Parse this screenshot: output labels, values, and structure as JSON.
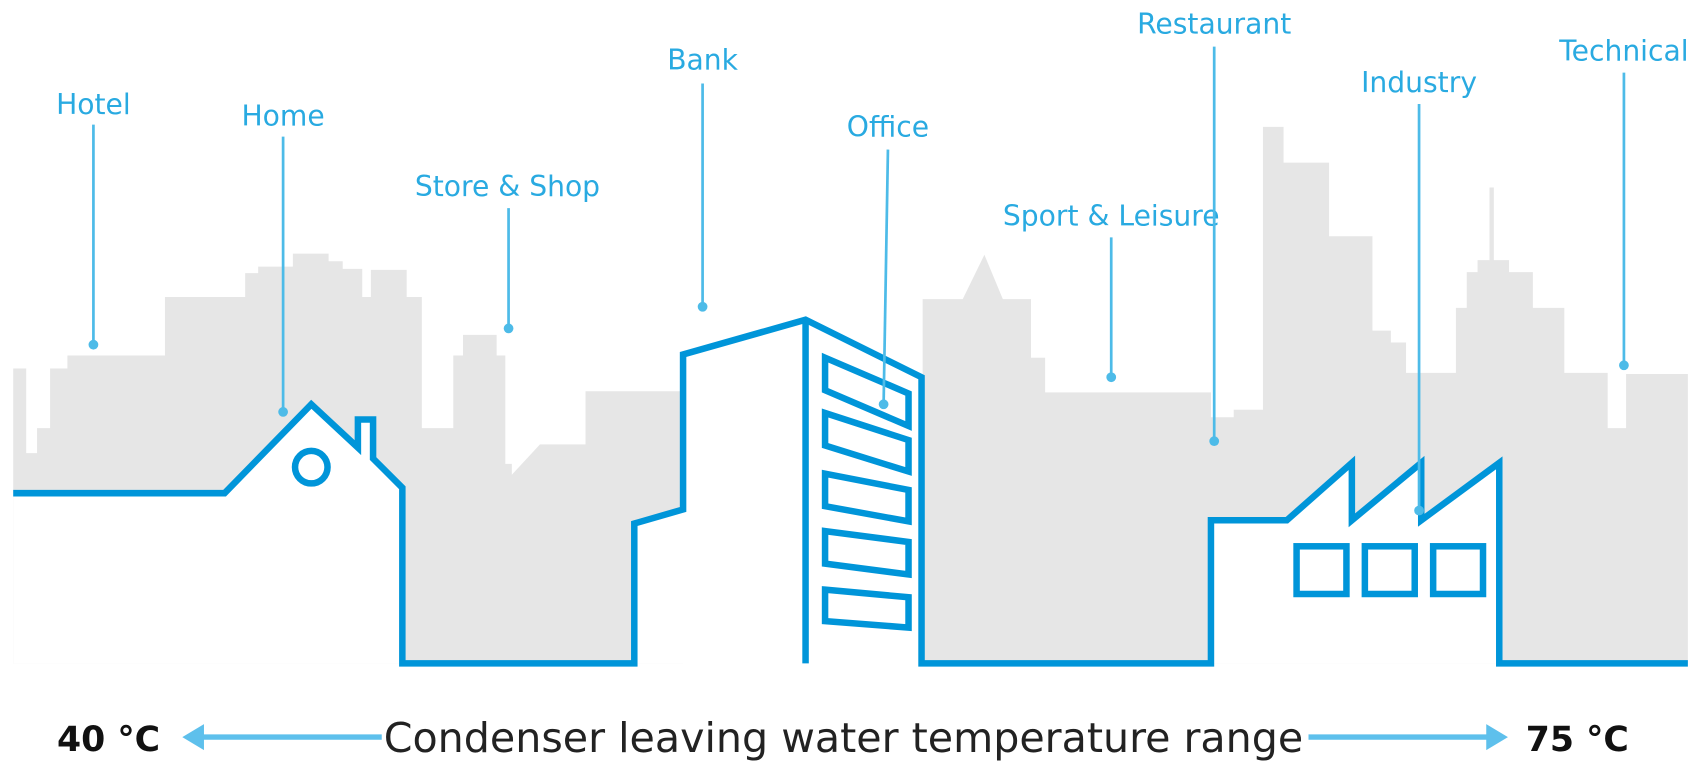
{
  "labels": [
    "Hotel",
    "Home",
    "Store & Shop",
    "Bank",
    "Office",
    "Sport & Leisure",
    "Restaurant",
    "Industry",
    "Technical"
  ],
  "scale": {
    "min": "40 °C",
    "caption": "Condenser leaving water temperature range",
    "max": "75 °C"
  }
}
